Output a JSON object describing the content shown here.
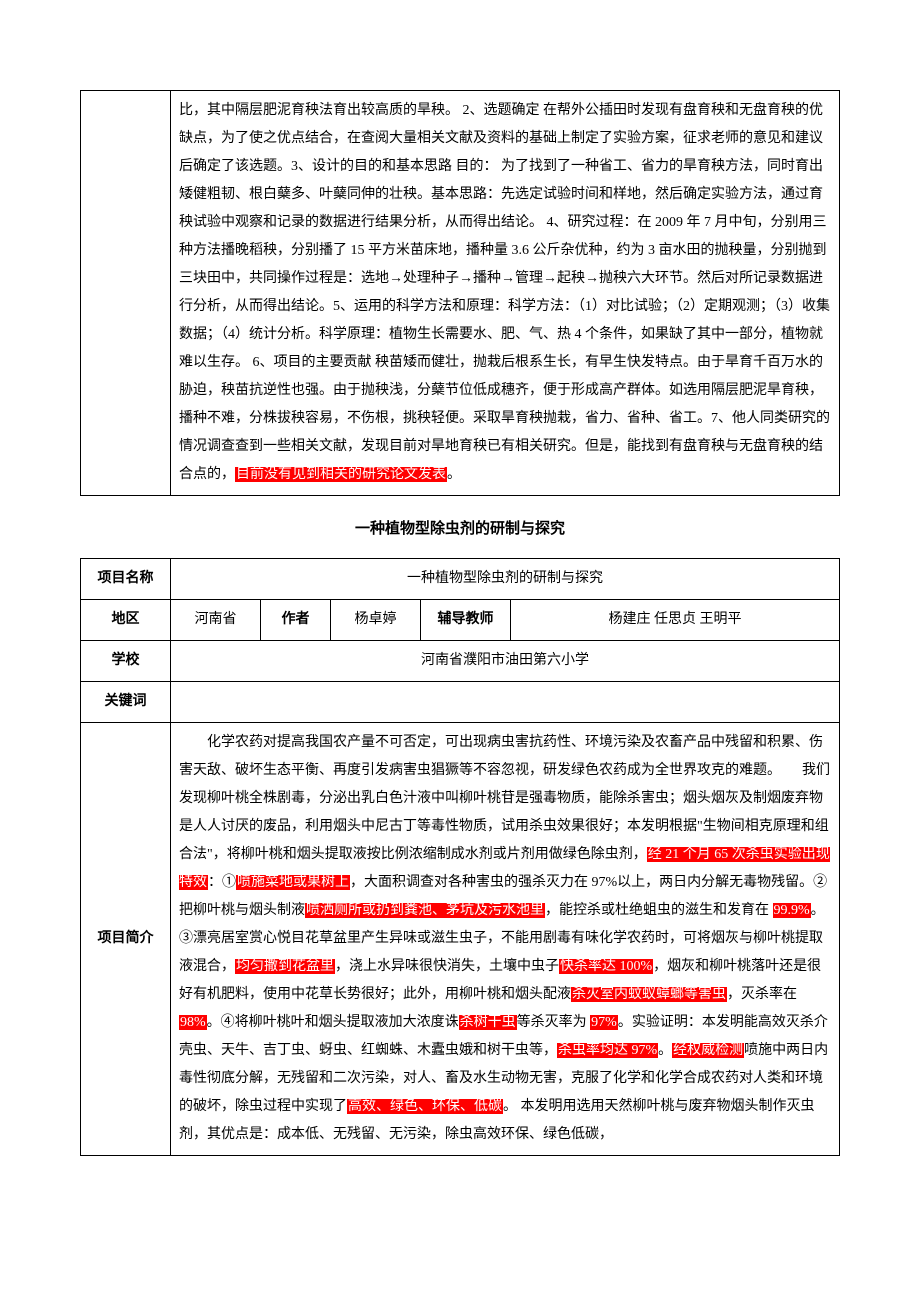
{
  "table1": {
    "content_parts": [
      {
        "t": "比，其中隔层肥泥育秧法育出较高质的旱秧。 2、选题确定 在帮外公插田时发现有盘育秧和无盘育秧的优缺点，为了使之优点结合，在查阅大量相关文献及资料的基础上制定了实验方案，征求老师的意见和建议后确定了该选题。3、设计的目的和基本思路 目的： 为了找到了一种省工、省力的旱育秧方法，同时育出矮健粗韧、根白蘖多、叶蘖同伸的壮秧。基本思路：先选定试验时间和样地，然后确定实验方法，通过育秧试验中观察和记录的数据进行结果分析，从而得出结论。 4、研究过程：在 2009 年 7 月中旬，分别用三种方法播晚稻秧，分别播了 15 平方米苗床地，播种量 3.6 公斤杂优种，约为 3 亩水田的抛秧量，分别抛到三块田中，共同操作过程是：选地→处理种子→播种→管理→起秧→抛秧六大环节。然后对所记录数据进行分析，从而得出结论。5、运用的科学方法和原理：科学方法：（1）对比试验；（2）定期观测；（3）收集数据；（4）统计分析。科学原理：植物生长需要水、肥、气、热 4 个条件，如果缺了其中一部分，植物就难以生存。 6、项目的主要贡献 秧苗矮而健壮，抛栽后根系生长，有早生快发特点。由于旱育千百万水的胁迫，秧苗抗逆性也强。由于抛秧浅，分蘖节位低成穗齐，便于形成高产群体。如选用隔层肥泥旱育秧，播种不难，分株拔秧容易，不伤根，挑秧轻便。采取旱育秧抛栽，省力、省种、省工。7、他人同类研究的情况调查查到一些相关文献，发现目前对旱地育秧已有相关研究。但是，能找到有盘育秧与无盘育秧的结合点的，"
      },
      {
        "t": "目前没有见到相关的研究论文发表",
        "hl": true
      },
      {
        "t": "。"
      }
    ]
  },
  "title2": "一种植物型除虫剂的研制与探究",
  "table2": {
    "row1": {
      "label": "项目名称",
      "value": "一种植物型除虫剂的研制与探究"
    },
    "row2": {
      "label1": "地区",
      "value1": "河南省",
      "label2": "作者",
      "value2": "杨卓婷",
      "label3": "辅导教师",
      "value3": "杨建庄 任思贞 王明平"
    },
    "row3": {
      "label": "学校",
      "value": "河南省濮阳市油田第六小学"
    },
    "row4": {
      "label": "关键词",
      "value": ""
    },
    "row5": {
      "label": "项目简介",
      "parts": [
        {
          "t": "　　化学农药对提高我国农产量不可否定，可出现病虫害抗药性、环境污染及农畜产品中残留和积累、伤害天敌、破坏生态平衡、再度引发病害虫猖獗等不容忽视，研发绿色农药成为全世界攻克的难题。　　我们发现柳叶桃全株剧毒，分泌出乳白色汁液中叫柳叶桃苷是强毒物质，能除杀害虫；烟头烟灰及制烟废弃物是人人讨厌的废品，利用烟头中尼古丁等毒性物质，试用杀虫效果很好；本发明根据\"生物间相克原理和组合法\"，将柳叶桃和烟头提取液按比例浓缩制成水剂或片剂用做绿色除虫剂，"
        },
        {
          "t": "经 21 个月 65 次杀虫实验出现特效",
          "hl": true
        },
        {
          "t": "：①"
        },
        {
          "t": "喷施菜地或果树上",
          "hl": true
        },
        {
          "t": "，大面积调查对各种害虫的强杀灭力在 97%以上，两日内分解无毒物残留。②把柳叶桃与烟头制液"
        },
        {
          "t": "喷洒厕所或扔到粪池、茅坑及污水池里",
          "hl": true
        },
        {
          "t": "，能控杀或杜绝蛆虫的滋生和发育在 "
        },
        {
          "t": "99.9%",
          "hl": true
        },
        {
          "t": "。③漂亮居室赏心悦目花草盆里产生异味或滋生虫子，不能用剧毒有味化学农药时，可将烟灰与柳叶桃提取液混合，"
        },
        {
          "t": "均匀撒到花盆里",
          "hl": true
        },
        {
          "t": "，浇上水异味很快消失，土壤中虫子"
        },
        {
          "t": "快杀率达 100%",
          "hl": true
        },
        {
          "t": "，烟灰和柳叶桃落叶还是很好有机肥料，使用中花草长势很好；此外，用柳叶桃和烟头配液"
        },
        {
          "t": "杀灭室内蚊蚁蟑螂等害虫",
          "hl": true
        },
        {
          "t": "，灭杀率在 "
        },
        {
          "t": "98%",
          "hl": true
        },
        {
          "t": "。④将柳叶桃叶和烟头提取液加大浓度诛"
        },
        {
          "t": "杀树干虫",
          "hl": true
        },
        {
          "t": "等杀灭率为 "
        },
        {
          "t": "97%",
          "hl": true
        },
        {
          "t": "。实验证明：本发明能高效灭杀介壳虫、天牛、吉丁虫、蚜虫、红蜘蛛、木蠹虫娥和树干虫等，"
        },
        {
          "t": "杀虫率均达 97%",
          "hl": true
        },
        {
          "t": "。"
        },
        {
          "t": "经权威检测",
          "hl": true
        },
        {
          "t": "喷施中两日内毒性彻底分解，无残留和二次污染，对人、畜及水生动物无害，克服了化学和化学合成农药对人类和环境的破坏，除虫过程中实现了"
        },
        {
          "t": "高效、绿色、环保、低碳",
          "hl": true
        },
        {
          "t": "。 本发明用选用天然柳叶桃与废弃物烟头制作灭虫剂，其优点是：成本低、无残留、无污染，除虫高效环保、绿色低碳，"
        }
      ]
    }
  }
}
